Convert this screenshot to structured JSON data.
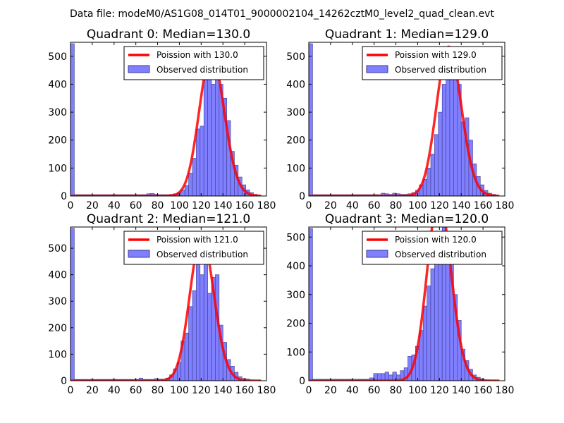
{
  "figure_title": "Data file: modeM0/AS1G08_014T01_9000002104_14262cztM0_level2_quad_clean.evt",
  "legend_labels": {
    "observed": "Observed distribution"
  },
  "colors": {
    "bar_fill": "#7f7fff",
    "bar_edge": "#3c3c8c",
    "poisson_line": "#ff0000"
  },
  "chart_data": [
    {
      "type": "bar",
      "title": "Quadrant 0: Median=130.0",
      "poisson_label": "Poission with 130.0",
      "poisson_mean": 130,
      "xlim": [
        0,
        180
      ],
      "ylim": [
        0,
        550
      ],
      "xticks": [
        0,
        20,
        40,
        60,
        80,
        100,
        120,
        140,
        160,
        180
      ],
      "yticks": [
        0,
        100,
        200,
        300,
        400,
        500
      ],
      "bin_width": 3.5,
      "bins": [
        [
          0,
          545
        ],
        [
          3.5,
          5
        ],
        [
          7,
          5
        ],
        [
          10.5,
          5
        ],
        [
          14,
          5
        ],
        [
          17.5,
          5
        ],
        [
          21,
          5
        ],
        [
          24.5,
          5
        ],
        [
          28,
          5
        ],
        [
          31.5,
          5
        ],
        [
          35,
          5
        ],
        [
          38.5,
          5
        ],
        [
          42,
          5
        ],
        [
          45.5,
          5
        ],
        [
          49,
          5
        ],
        [
          52.5,
          5
        ],
        [
          56,
          5
        ],
        [
          59.5,
          5
        ],
        [
          63,
          5
        ],
        [
          66.5,
          5
        ],
        [
          70,
          8
        ],
        [
          73.5,
          9
        ],
        [
          77,
          6
        ],
        [
          80.5,
          5
        ],
        [
          84,
          5
        ],
        [
          87.5,
          5
        ],
        [
          91,
          6
        ],
        [
          94.5,
          8
        ],
        [
          98,
          12
        ],
        [
          101.5,
          22
        ],
        [
          105,
          38
        ],
        [
          108.5,
          82
        ],
        [
          112,
          135
        ],
        [
          115.5,
          240
        ],
        [
          119,
          250
        ],
        [
          122.5,
          420
        ],
        [
          126,
          455
        ],
        [
          129.5,
          400
        ],
        [
          133,
          500
        ],
        [
          136.5,
          400
        ],
        [
          140,
          350
        ],
        [
          143.5,
          270
        ],
        [
          147,
          160
        ],
        [
          150.5,
          110
        ],
        [
          154,
          68
        ],
        [
          157.5,
          40
        ],
        [
          161,
          22
        ],
        [
          164.5,
          12
        ],
        [
          168,
          6
        ]
      ]
    },
    {
      "type": "bar",
      "title": "Quadrant 1: Median=129.0",
      "poisson_label": "Poission with 129.0",
      "poisson_mean": 129,
      "xlim": [
        0,
        180
      ],
      "ylim": [
        0,
        550
      ],
      "xticks": [
        0,
        20,
        40,
        60,
        80,
        100,
        120,
        140,
        160,
        180
      ],
      "yticks": [
        0,
        100,
        200,
        300,
        400,
        500
      ],
      "bin_width": 3.5,
      "bins": [
        [
          0,
          545
        ],
        [
          3.5,
          5
        ],
        [
          7,
          5
        ],
        [
          10.5,
          5
        ],
        [
          14,
          5
        ],
        [
          17.5,
          5
        ],
        [
          21,
          5
        ],
        [
          24.5,
          5
        ],
        [
          28,
          5
        ],
        [
          31.5,
          5
        ],
        [
          35,
          5
        ],
        [
          38.5,
          5
        ],
        [
          42,
          5
        ],
        [
          45.5,
          5
        ],
        [
          49,
          5
        ],
        [
          52.5,
          5
        ],
        [
          56,
          5
        ],
        [
          59.5,
          5
        ],
        [
          63,
          5
        ],
        [
          66.5,
          10
        ],
        [
          70,
          8
        ],
        [
          73.5,
          6
        ],
        [
          77,
          10
        ],
        [
          80.5,
          8
        ],
        [
          84,
          6
        ],
        [
          87.5,
          6
        ],
        [
          91,
          8
        ],
        [
          94.5,
          12
        ],
        [
          98,
          20
        ],
        [
          101.5,
          40
        ],
        [
          105,
          60
        ],
        [
          108.5,
          100
        ],
        [
          112,
          150
        ],
        [
          115.5,
          220
        ],
        [
          119,
          300
        ],
        [
          122.5,
          400
        ],
        [
          126,
          470
        ],
        [
          129.5,
          520
        ],
        [
          133,
          495
        ],
        [
          136.5,
          400
        ],
        [
          140,
          265
        ],
        [
          143.5,
          280
        ],
        [
          147,
          200
        ],
        [
          150.5,
          115
        ],
        [
          154,
          70
        ],
        [
          157.5,
          40
        ],
        [
          161,
          20
        ],
        [
          164.5,
          10
        ],
        [
          168,
          6
        ]
      ]
    },
    {
      "type": "bar",
      "title": "Quadrant 2: Median=121.0",
      "poisson_label": "Poission with 121.0",
      "poisson_mean": 121,
      "xlim": [
        0,
        180
      ],
      "ylim": [
        0,
        580
      ],
      "xticks": [
        0,
        20,
        40,
        60,
        80,
        100,
        120,
        140,
        160,
        180
      ],
      "yticks": [
        0,
        100,
        200,
        300,
        400,
        500
      ],
      "bin_width": 3.5,
      "bins": [
        [
          0,
          575
        ],
        [
          3.5,
          5
        ],
        [
          7,
          5
        ],
        [
          10.5,
          5
        ],
        [
          14,
          5
        ],
        [
          17.5,
          5
        ],
        [
          21,
          5
        ],
        [
          24.5,
          5
        ],
        [
          28,
          5
        ],
        [
          31.5,
          5
        ],
        [
          35,
          5
        ],
        [
          38.5,
          5
        ],
        [
          42,
          5
        ],
        [
          45.5,
          5
        ],
        [
          49,
          5
        ],
        [
          52.5,
          5
        ],
        [
          56,
          5
        ],
        [
          59.5,
          5
        ],
        [
          63,
          10
        ],
        [
          66.5,
          5
        ],
        [
          70,
          5
        ],
        [
          73.5,
          5
        ],
        [
          77,
          8
        ],
        [
          80.5,
          6
        ],
        [
          84,
          6
        ],
        [
          87.5,
          10
        ],
        [
          91,
          22
        ],
        [
          94.5,
          45
        ],
        [
          98,
          70
        ],
        [
          101.5,
          150
        ],
        [
          105,
          180
        ],
        [
          108.5,
          280
        ],
        [
          112,
          340
        ],
        [
          115.5,
          500
        ],
        [
          119,
          400
        ],
        [
          122.5,
          470
        ],
        [
          126,
          330
        ],
        [
          129.5,
          390
        ],
        [
          133,
          400
        ],
        [
          136.5,
          210
        ],
        [
          140,
          145
        ],
        [
          143.5,
          80
        ],
        [
          147,
          55
        ],
        [
          150.5,
          32
        ],
        [
          154,
          15
        ],
        [
          157.5,
          8
        ],
        [
          161,
          6
        ]
      ]
    },
    {
      "type": "bar",
      "title": "Quadrant 3: Median=120.0",
      "poisson_label": "Poission with 120.0",
      "poisson_mean": 120,
      "xlim": [
        0,
        180
      ],
      "ylim": [
        0,
        535
      ],
      "xticks": [
        0,
        20,
        40,
        60,
        80,
        100,
        120,
        140,
        160,
        180
      ],
      "yticks": [
        0,
        100,
        200,
        300,
        400,
        500
      ],
      "bin_width": 3.5,
      "bins": [
        [
          0,
          530
        ],
        [
          3.5,
          5
        ],
        [
          7,
          5
        ],
        [
          10.5,
          5
        ],
        [
          14,
          5
        ],
        [
          17.5,
          5
        ],
        [
          21,
          5
        ],
        [
          24.5,
          5
        ],
        [
          28,
          5
        ],
        [
          31.5,
          5
        ],
        [
          35,
          5
        ],
        [
          38.5,
          5
        ],
        [
          42,
          5
        ],
        [
          45.5,
          5
        ],
        [
          49,
          5
        ],
        [
          52.5,
          5
        ],
        [
          56,
          10
        ],
        [
          59.5,
          25
        ],
        [
          63,
          25
        ],
        [
          66.5,
          25
        ],
        [
          70,
          30
        ],
        [
          73.5,
          20
        ],
        [
          77,
          30
        ],
        [
          80.5,
          20
        ],
        [
          84,
          35
        ],
        [
          87.5,
          45
        ],
        [
          91,
          85
        ],
        [
          94.5,
          90
        ],
        [
          98,
          120
        ],
        [
          101.5,
          175
        ],
        [
          105,
          260
        ],
        [
          108.5,
          330
        ],
        [
          112,
          390
        ],
        [
          115.5,
          510
        ],
        [
          119,
          470
        ],
        [
          122.5,
          535
        ],
        [
          126,
          480
        ],
        [
          129.5,
          410
        ],
        [
          133,
          300
        ],
        [
          136.5,
          210
        ],
        [
          140,
          110
        ],
        [
          143.5,
          70
        ],
        [
          147,
          40
        ],
        [
          150.5,
          20
        ],
        [
          154,
          12
        ],
        [
          157.5,
          7
        ]
      ]
    }
  ]
}
